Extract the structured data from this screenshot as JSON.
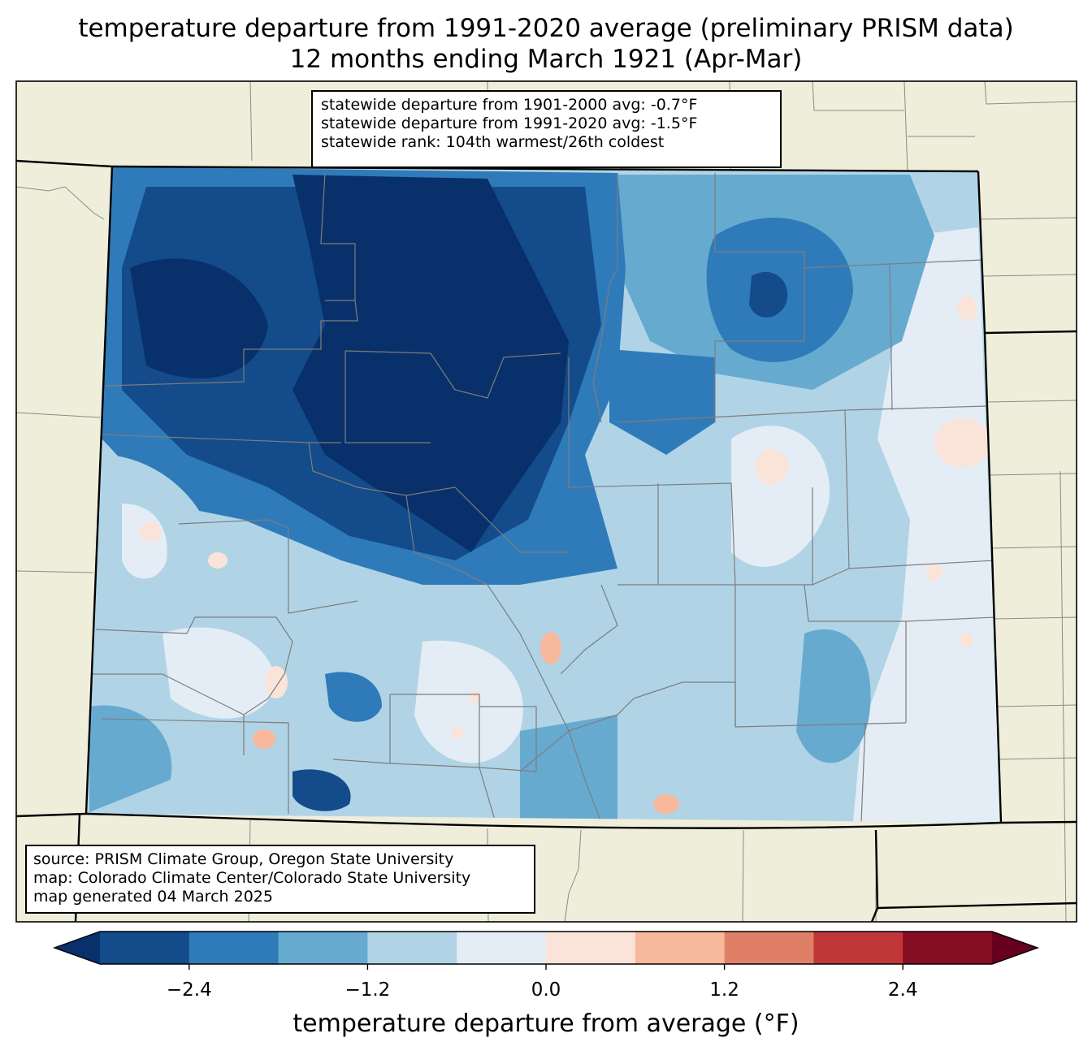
{
  "title": {
    "line1": "temperature departure from 1991-2020 average (preliminary PRISM data)",
    "line2": "12 months ending March 1921 (Apr-Mar)"
  },
  "stats": {
    "line1": "statewide departure from 1901-2000 avg: -0.7°F",
    "line2": "statewide departure from 1991-2020 avg: -1.5°F",
    "line3": "statewide rank: 104th warmest/26th coldest"
  },
  "source": {
    "line1": "source: PRISM Climate Group, Oregon State University",
    "line2": "map: Colorado Climate Center/Colorado State University",
    "line3": "map generated 04 March 2025"
  },
  "colorbar": {
    "label": "temperature departure from average (°F)",
    "ticks": [
      "−2.4",
      "−1.2",
      "0.0",
      "1.2",
      "2.4"
    ],
    "bins": [
      -3.0,
      -2.4,
      -1.8,
      -1.2,
      -0.6,
      0.0,
      0.6,
      1.2,
      1.8,
      2.4,
      3.0
    ],
    "colors": [
      "#08306b",
      "#144b8a",
      "#2f7bba",
      "#67aad0",
      "#b0d4e6",
      "#e4edf5",
      "#fae4d9",
      "#f8b89c",
      "#e07f67",
      "#c13639",
      "#860e23",
      "#67001f"
    ]
  },
  "map": {
    "background_color": "#efeedb"
  }
}
